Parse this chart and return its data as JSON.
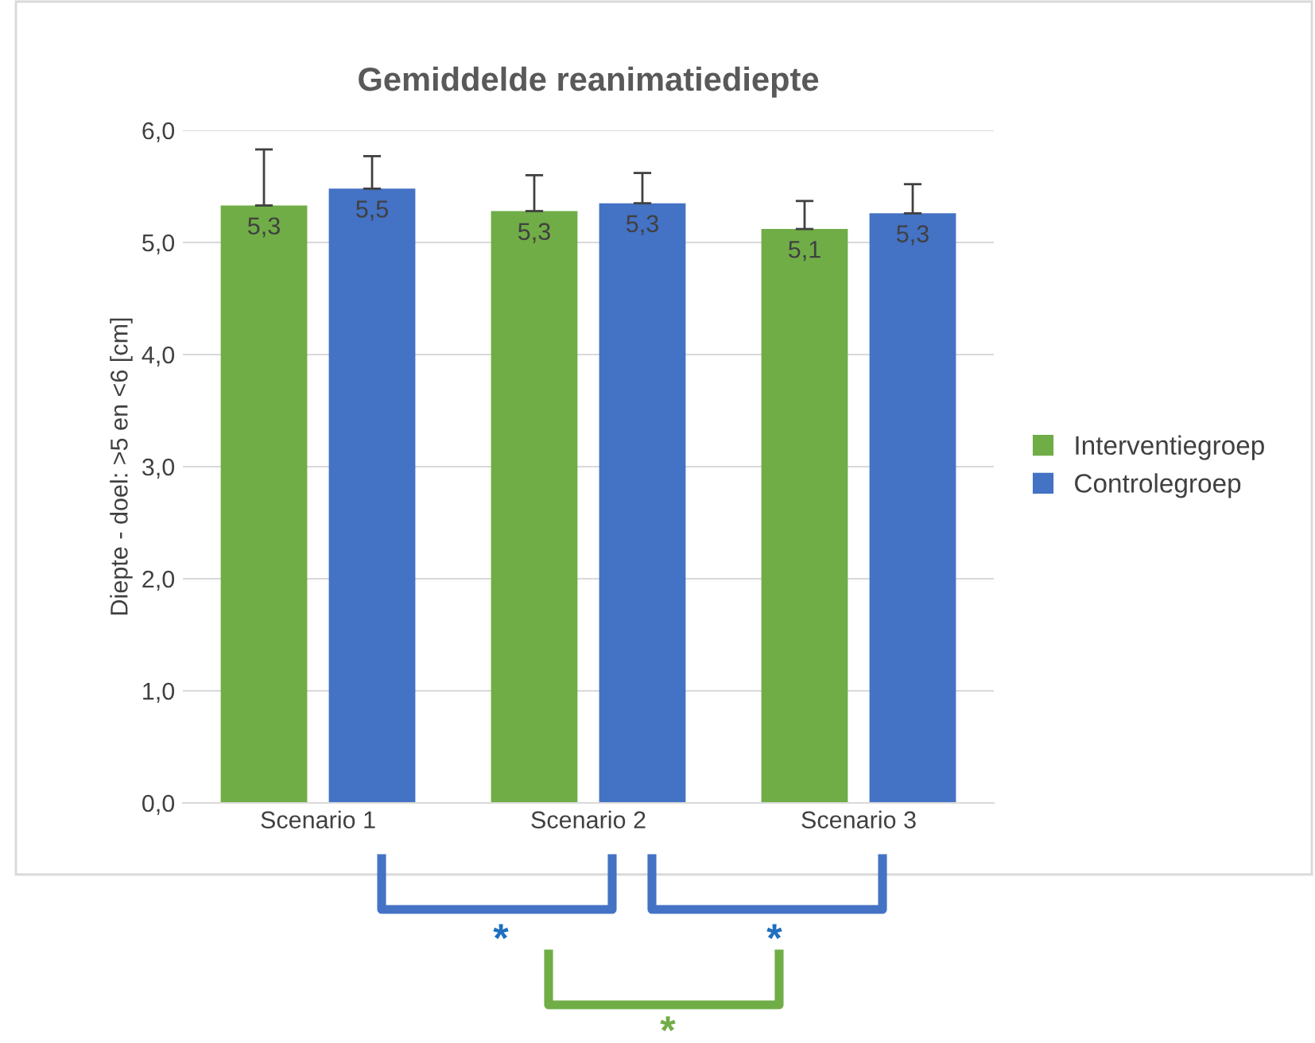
{
  "chart_data": {
    "type": "bar",
    "title": "Gemiddelde reanimatiediepte",
    "ylabel": "Diepte - doel: >5 en <6 [cm]",
    "categories": [
      "Scenario 1",
      "Scenario 2",
      "Scenario 3"
    ],
    "series": [
      {
        "name": "Interventiegroep",
        "color": "#70ad47",
        "values": [
          5.33,
          5.28,
          5.12
        ],
        "errors": [
          0.5,
          0.32,
          0.25
        ],
        "value_labels": [
          "5,3",
          "5,3",
          "5,1"
        ]
      },
      {
        "name": "Controlegroep",
        "color": "#4472c4",
        "values": [
          5.48,
          5.35,
          5.26
        ],
        "errors": [
          0.29,
          0.27,
          0.26
        ],
        "value_labels": [
          "5,5",
          "5,3",
          "5,3"
        ]
      }
    ],
    "ylim": [
      0,
      6
    ],
    "yticks": [
      {
        "value": 0,
        "label": "0,0"
      },
      {
        "value": 1,
        "label": "1,0"
      },
      {
        "value": 2,
        "label": "2,0"
      },
      {
        "value": 3,
        "label": "3,0"
      },
      {
        "value": 4,
        "label": "4,0"
      },
      {
        "value": 5,
        "label": "5,0"
      },
      {
        "value": 6,
        "label": "6,0"
      }
    ],
    "grid": "y",
    "legend": "right",
    "annotations": [
      "*",
      "*",
      "*"
    ]
  }
}
